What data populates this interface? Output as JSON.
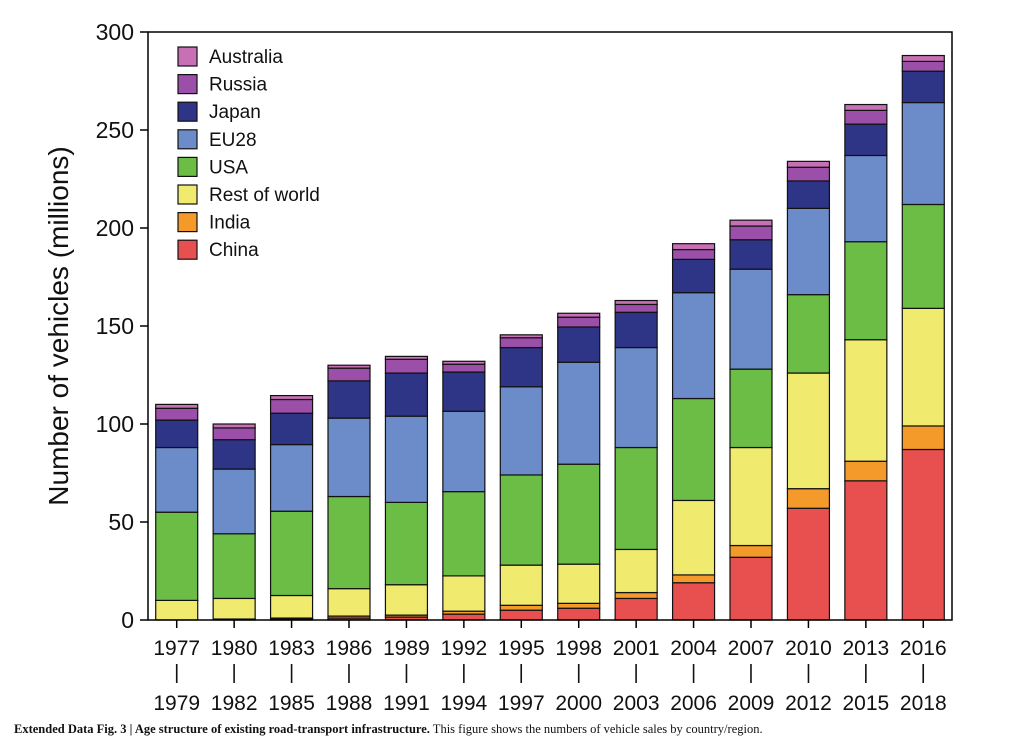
{
  "chart_data": {
    "type": "bar",
    "stacked": true,
    "ylabel": "Number of vehicles (millions)",
    "ylim": [
      0,
      300
    ],
    "yticks": [
      0,
      50,
      100,
      150,
      200,
      250,
      300
    ],
    "grid": false,
    "legend_position": "top-left",
    "categories_top": [
      "1977",
      "1980",
      "1983",
      "1986",
      "1989",
      "1992",
      "1995",
      "1998",
      "2001",
      "2004",
      "2007",
      "2010",
      "2013",
      "2016"
    ],
    "categories_bottom": [
      "1979",
      "1982",
      "1985",
      "1988",
      "1991",
      "1994",
      "1997",
      "2000",
      "2003",
      "2006",
      "2009",
      "2012",
      "2015",
      "2018"
    ],
    "range_separator": "|",
    "series": [
      {
        "name": "China",
        "color": "#e8504f",
        "values": [
          0,
          0,
          0.5,
          1,
          1.5,
          3,
          5,
          6,
          11,
          19,
          32,
          57,
          71,
          87
        ]
      },
      {
        "name": "India",
        "color": "#f39a2a",
        "values": [
          0,
          0.5,
          0.5,
          1,
          1,
          1.5,
          2.5,
          2.5,
          3,
          4,
          6,
          10,
          10,
          12
        ]
      },
      {
        "name": "Rest of world",
        "color": "#f0ea6e",
        "values": [
          10,
          10.5,
          11.5,
          14,
          15.5,
          18,
          20.5,
          20,
          22,
          38,
          50,
          59,
          62,
          60
        ]
      },
      {
        "name": "USA",
        "color": "#6bbd45",
        "values": [
          45,
          33,
          43,
          47,
          42,
          43,
          46,
          51,
          52,
          52,
          40,
          40,
          50,
          53
        ]
      },
      {
        "name": "EU28",
        "color": "#6b8cc8",
        "values": [
          33,
          33,
          34,
          40,
          44,
          41,
          45,
          52,
          51,
          54,
          51,
          44,
          44,
          52
        ]
      },
      {
        "name": "Japan",
        "color": "#2e3587",
        "values": [
          14,
          15,
          16,
          19,
          22,
          20,
          20,
          18,
          18,
          17,
          15,
          14,
          16,
          16
        ]
      },
      {
        "name": "Russia",
        "color": "#9b4fa8",
        "values": [
          6,
          6,
          7,
          6.5,
          7,
          4,
          5,
          5,
          4,
          5,
          7,
          7,
          7,
          5
        ]
      },
      {
        "name": "Australia",
        "color": "#c770b5",
        "values": [
          2,
          2,
          2,
          1.5,
          1.5,
          1.5,
          1.5,
          2,
          2,
          3,
          3,
          3,
          3,
          3
        ]
      }
    ],
    "legend_order": [
      "Australia",
      "Russia",
      "Japan",
      "EU28",
      "USA",
      "Rest of world",
      "India",
      "China"
    ]
  },
  "caption": {
    "bold": "Extended Data Fig. 3 | Age structure of existing road-transport infrastructure.",
    "text": " This figure shows the numbers of vehicle sales by country/region."
  }
}
